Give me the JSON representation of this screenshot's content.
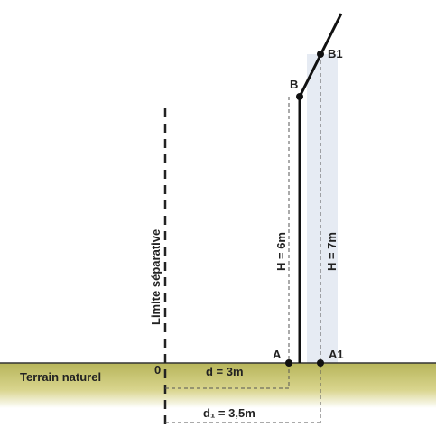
{
  "boundary_label": "Limite séparative",
  "ground_label": "Terrain naturel",
  "origin_label": "0",
  "distances": {
    "d": "d = 3m",
    "d1": "d₁ = 3,5m"
  },
  "heights": {
    "h": "H = 6m",
    "h1": "H = 7m"
  },
  "points": {
    "a": "A",
    "a1": "A1",
    "b": "B",
    "b1": "B1"
  }
}
